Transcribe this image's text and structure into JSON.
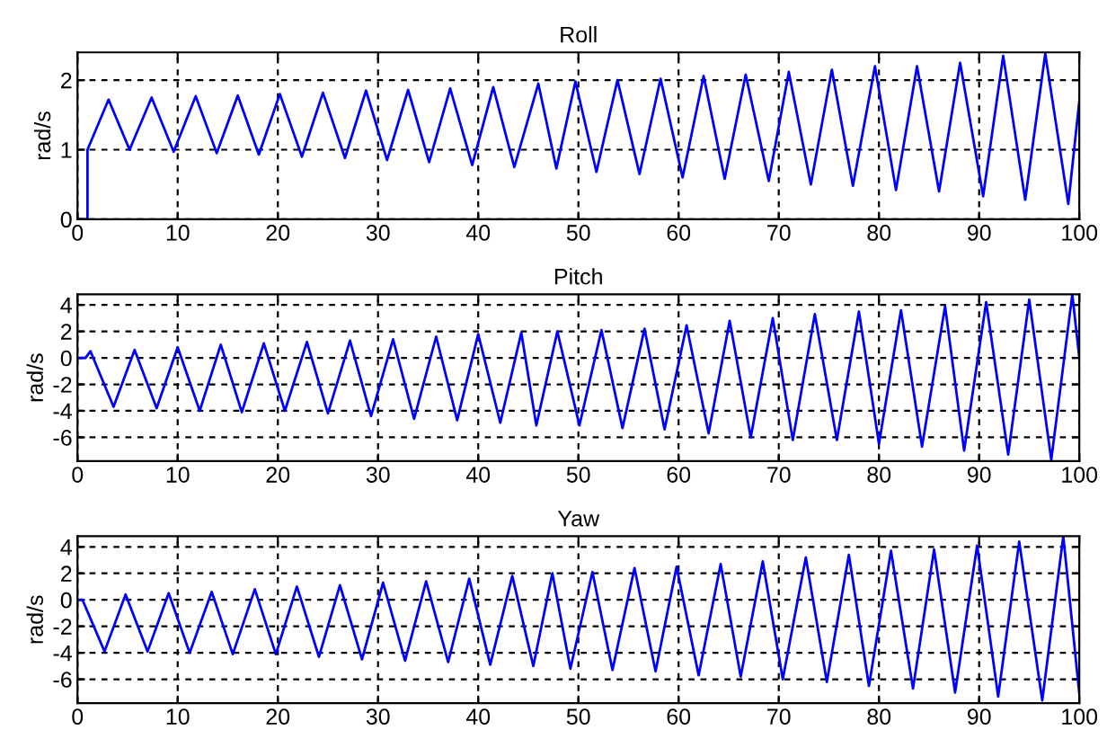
{
  "chart_data": [
    {
      "type": "line",
      "title": "Roll",
      "ylabel": "rad/s",
      "xlim": [
        0,
        100
      ],
      "xticks": [
        0,
        10,
        20,
        30,
        40,
        50,
        60,
        70,
        80,
        90,
        100
      ],
      "ylim": [
        0,
        2.4
      ],
      "yticks": [
        0,
        1,
        2
      ],
      "grid": true,
      "line_style": "solid",
      "series": [
        {
          "color": "#0000ff",
          "x": [
            0,
            1,
            1,
            3.1,
            5.2,
            7.4,
            9.6,
            11.8,
            13.9,
            16.0,
            18.1,
            20.2,
            22.4,
            24.5,
            26.7,
            28.8,
            30.9,
            33.0,
            35.1,
            37.2,
            39.4,
            41.5,
            43.6,
            46.0,
            47.8,
            49.7,
            51.8,
            53.9,
            56.1,
            58.2,
            60.4,
            62.5,
            64.6,
            66.7,
            69.0,
            71.0,
            73.2,
            75.3,
            77.4,
            79.6,
            81.7,
            83.8,
            86.0,
            88.1,
            90.4,
            92.4,
            94.6,
            96.6,
            98.9,
            100
          ],
          "values": [
            0,
            0,
            1,
            1.72,
            1.0,
            1.75,
            0.97,
            1.77,
            0.95,
            1.78,
            0.93,
            1.8,
            0.9,
            1.82,
            0.88,
            1.85,
            0.85,
            1.86,
            0.82,
            1.88,
            0.78,
            1.9,
            0.75,
            1.95,
            0.73,
            1.98,
            0.68,
            2.0,
            0.65,
            2.02,
            0.6,
            2.06,
            0.58,
            2.08,
            0.55,
            2.12,
            0.5,
            2.15,
            0.48,
            2.2,
            0.42,
            2.2,
            0.4,
            2.25,
            0.33,
            2.35,
            0.28,
            2.38,
            0.22,
            1.7
          ]
        }
      ]
    },
    {
      "type": "line",
      "title": "Pitch",
      "ylabel": "rad/s",
      "xlim": [
        0,
        100
      ],
      "xticks": [
        0,
        10,
        20,
        30,
        40,
        50,
        60,
        70,
        80,
        90,
        100
      ],
      "ylim": [
        -7.8,
        4.8
      ],
      "yticks": [
        -6,
        -4,
        -2,
        0,
        2,
        4
      ],
      "grid": true,
      "line_style": "solid",
      "series": [
        {
          "color": "#0000ff",
          "x": [
            0,
            0.8,
            1.3,
            3.6,
            5.7,
            7.9,
            10.0,
            12.2,
            14.3,
            16.4,
            18.6,
            20.7,
            22.9,
            25.0,
            27.2,
            29.3,
            31.5,
            33.6,
            35.8,
            37.9,
            40.0,
            42.2,
            44.3,
            45.8,
            47.9,
            50.1,
            52.3,
            54.4,
            56.6,
            58.6,
            60.8,
            63.0,
            65.1,
            67.2,
            69.4,
            71.4,
            73.6,
            75.8,
            78.0,
            80.0,
            82.2,
            84.3,
            86.6,
            88.5,
            90.7,
            92.9,
            95.0,
            97.2,
            99.3,
            100
          ],
          "values": [
            0,
            0,
            0.5,
            -3.7,
            0.6,
            -3.8,
            0.8,
            -4.0,
            1.0,
            -4.1,
            1.1,
            -4.0,
            1.2,
            -4.2,
            1.3,
            -4.4,
            1.4,
            -4.6,
            1.6,
            -4.7,
            1.8,
            -4.9,
            1.9,
            -5.1,
            2.0,
            -5.1,
            2.1,
            -5.3,
            2.2,
            -5.4,
            2.45,
            -5.7,
            2.8,
            -6.0,
            3.0,
            -6.2,
            3.3,
            -6.2,
            3.5,
            -6.5,
            3.6,
            -6.7,
            3.9,
            -7.0,
            4.2,
            -7.3,
            4.4,
            -7.7,
            4.8,
            0
          ]
        }
      ]
    },
    {
      "type": "line",
      "title": "Yaw",
      "ylabel": "rad/s",
      "xlim": [
        0,
        100
      ],
      "xticks": [
        0,
        10,
        20,
        30,
        40,
        50,
        60,
        70,
        80,
        90,
        100
      ],
      "ylim": [
        -7.8,
        4.8
      ],
      "yticks": [
        -6,
        -4,
        -2,
        0,
        2,
        4
      ],
      "grid": true,
      "line_style": "solid",
      "series": [
        {
          "color": "#0000ff",
          "x": [
            0,
            0.5,
            2.7,
            4.8,
            7.0,
            9.1,
            11.2,
            13.4,
            15.5,
            17.7,
            19.8,
            21.9,
            24.1,
            26.2,
            28.4,
            30.5,
            32.7,
            34.8,
            37.0,
            39.1,
            41.2,
            43.4,
            45.5,
            47.4,
            49.2,
            51.4,
            53.4,
            55.6,
            57.7,
            59.8,
            62.0,
            64.2,
            66.2,
            68.4,
            70.4,
            72.7,
            74.8,
            77.0,
            79.0,
            81.2,
            83.4,
            85.5,
            87.6,
            89.8,
            91.9,
            94.0,
            96.3,
            98.4,
            100
          ],
          "values": [
            0,
            0,
            -3.9,
            0.4,
            -3.9,
            0.5,
            -4.0,
            0.6,
            -4.1,
            0.8,
            -4.1,
            1.0,
            -4.3,
            1.1,
            -4.5,
            1.3,
            -4.6,
            1.4,
            -4.7,
            1.6,
            -4.9,
            1.8,
            -5.0,
            2.0,
            -5.2,
            2.1,
            -5.3,
            2.4,
            -5.4,
            2.5,
            -5.7,
            2.7,
            -5.8,
            2.9,
            -6.0,
            3.2,
            -6.2,
            3.4,
            -6.5,
            3.7,
            -6.7,
            3.8,
            -7.0,
            4.1,
            -7.3,
            4.4,
            -7.6,
            4.8,
            -7.1
          ]
        }
      ]
    }
  ]
}
